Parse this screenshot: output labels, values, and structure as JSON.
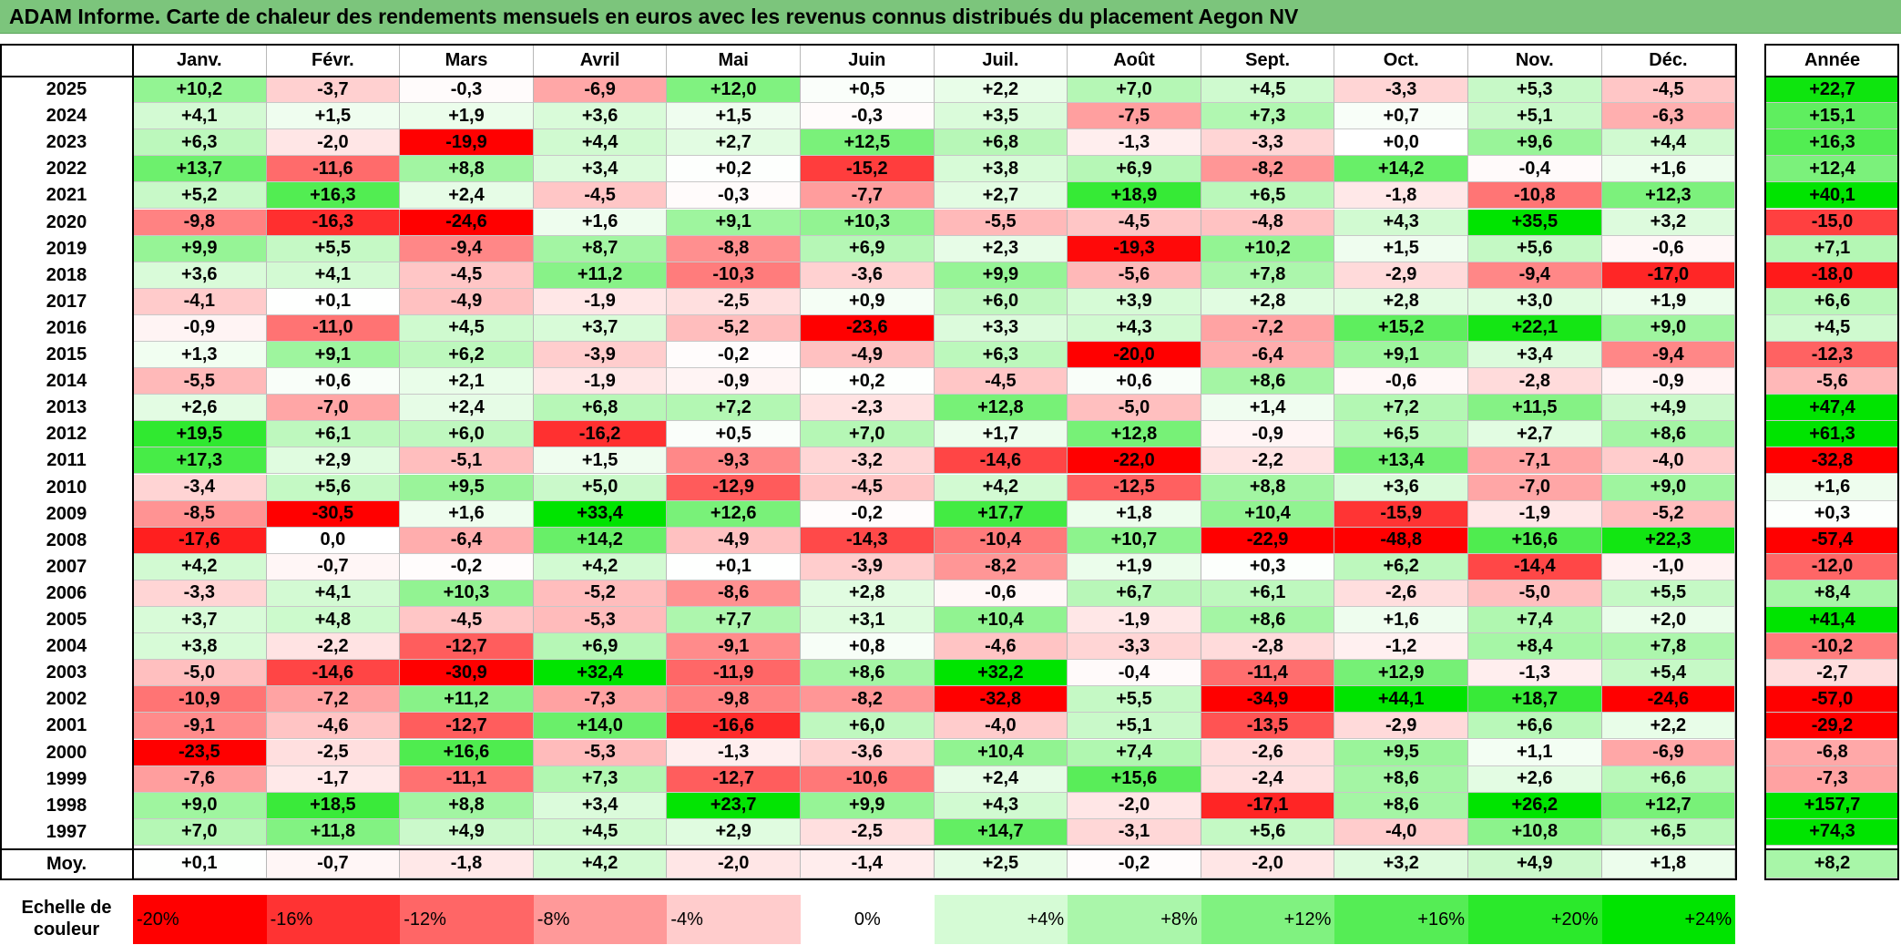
{
  "title": "ADAM Informe. Carte de chaleur des rendements mensuels en euros avec les revenus connus distribués du placement Aegon NV",
  "colors": {
    "title_bg": "#7cc57c",
    "neg_max": "#ff0000",
    "pos_max": "#00e400",
    "neutral": "#ffffff"
  },
  "chart_data": {
    "type": "heatmap",
    "months": [
      "Janv.",
      "Févr.",
      "Mars",
      "Avril",
      "Mai",
      "Juin",
      "Juil.",
      "Août",
      "Sept.",
      "Oct.",
      "Nov.",
      "Déc."
    ],
    "year_header": "Année",
    "rows": [
      {
        "year": "2025",
        "values": [
          "+10,2",
          "-3,7",
          "-0,3",
          "-6,9",
          "+12,0",
          "+0,5",
          "+2,2",
          "+7,0",
          "+4,5",
          "-3,3",
          "+5,3",
          "-4,5"
        ],
        "annual": "+22,7"
      },
      {
        "year": "2024",
        "values": [
          "+4,1",
          "+1,5",
          "+1,9",
          "+3,6",
          "+1,5",
          "-0,3",
          "+3,5",
          "-7,5",
          "+7,3",
          "+0,7",
          "+5,1",
          "-6,3"
        ],
        "annual": "+15,1"
      },
      {
        "year": "2023",
        "values": [
          "+6,3",
          "-2,0",
          "-19,9",
          "+4,4",
          "+2,7",
          "+12,5",
          "+6,8",
          "-1,3",
          "-3,3",
          "+0,0",
          "+9,6",
          "+4,4"
        ],
        "annual": "+16,3"
      },
      {
        "year": "2022",
        "values": [
          "+13,7",
          "-11,6",
          "+8,8",
          "+3,4",
          "+0,2",
          "-15,2",
          "+3,8",
          "+6,9",
          "-8,2",
          "+14,2",
          "-0,4",
          "+1,6"
        ],
        "annual": "+12,4"
      },
      {
        "year": "2021",
        "values": [
          "+5,2",
          "+16,3",
          "+2,4",
          "-4,5",
          "-0,3",
          "-7,7",
          "+2,7",
          "+18,9",
          "+6,5",
          "-1,8",
          "-10,8",
          "+12,3"
        ],
        "annual": "+40,1"
      },
      {
        "year": "2020",
        "values": [
          "-9,8",
          "-16,3",
          "-24,6",
          "+1,6",
          "+9,1",
          "+10,3",
          "-5,5",
          "-4,5",
          "-4,8",
          "+4,3",
          "+35,5",
          "+3,2"
        ],
        "annual": "-15,0"
      },
      {
        "year": "2019",
        "values": [
          "+9,9",
          "+5,5",
          "-9,4",
          "+8,7",
          "-8,8",
          "+6,9",
          "+2,3",
          "-19,3",
          "+10,2",
          "+1,5",
          "+5,6",
          "-0,6"
        ],
        "annual": "+7,1"
      },
      {
        "year": "2018",
        "values": [
          "+3,6",
          "+4,1",
          "-4,5",
          "+11,2",
          "-10,3",
          "-3,6",
          "+9,9",
          "-5,6",
          "+7,8",
          "-2,9",
          "-9,4",
          "-17,0"
        ],
        "annual": "-18,0"
      },
      {
        "year": "2017",
        "values": [
          "-4,1",
          "+0,1",
          "-4,9",
          "-1,9",
          "-2,5",
          "+0,9",
          "+6,0",
          "+3,9",
          "+2,8",
          "+2,8",
          "+3,0",
          "+1,9"
        ],
        "annual": "+6,6"
      },
      {
        "year": "2016",
        "values": [
          "-0,9",
          "-11,0",
          "+4,5",
          "+3,7",
          "-5,2",
          "-23,6",
          "+3,3",
          "+4,3",
          "-7,2",
          "+15,2",
          "+22,1",
          "+9,0"
        ],
        "annual": "+4,5"
      },
      {
        "year": "2015",
        "values": [
          "+1,3",
          "+9,1",
          "+6,2",
          "-3,9",
          "-0,2",
          "-4,9",
          "+6,3",
          "-20,0",
          "-6,4",
          "+9,1",
          "+3,4",
          "-9,4"
        ],
        "annual": "-12,3"
      },
      {
        "year": "2014",
        "values": [
          "-5,5",
          "+0,6",
          "+2,1",
          "-1,9",
          "-0,9",
          "+0,2",
          "-4,5",
          "+0,6",
          "+8,6",
          "-0,6",
          "-2,8",
          "-0,9"
        ],
        "annual": "-5,6"
      },
      {
        "year": "2013",
        "values": [
          "+2,6",
          "-7,0",
          "+2,4",
          "+6,8",
          "+7,2",
          "-2,3",
          "+12,8",
          "-5,0",
          "+1,4",
          "+7,2",
          "+11,5",
          "+4,9"
        ],
        "annual": "+47,4"
      },
      {
        "year": "2012",
        "values": [
          "+19,5",
          "+6,1",
          "+6,0",
          "-16,2",
          "+0,5",
          "+7,0",
          "+1,7",
          "+12,8",
          "-0,9",
          "+6,5",
          "+2,7",
          "+8,6"
        ],
        "annual": "+61,3"
      },
      {
        "year": "2011",
        "values": [
          "+17,3",
          "+2,9",
          "-5,1",
          "+1,5",
          "-9,3",
          "-3,2",
          "-14,6",
          "-22,0",
          "-2,2",
          "+13,4",
          "-7,1",
          "-4,0"
        ],
        "annual": "-32,8"
      },
      {
        "year": "2010",
        "values": [
          "-3,4",
          "+5,6",
          "+9,5",
          "+5,0",
          "-12,9",
          "-4,5",
          "+4,2",
          "-12,5",
          "+8,8",
          "+3,6",
          "-7,0",
          "+9,0"
        ],
        "annual": "+1,6"
      },
      {
        "year": "2009",
        "values": [
          "-8,5",
          "-30,5",
          "+1,6",
          "+33,4",
          "+12,6",
          "-0,2",
          "+17,7",
          "+1,8",
          "+10,4",
          "-15,9",
          "-1,9",
          "-5,2"
        ],
        "annual": "+0,3"
      },
      {
        "year": "2008",
        "values": [
          "-17,6",
          "0,0",
          "-6,4",
          "+14,2",
          "-4,9",
          "-14,3",
          "-10,4",
          "+10,7",
          "-22,9",
          "-48,8",
          "+16,6",
          "+22,3"
        ],
        "annual": "-57,4"
      },
      {
        "year": "2007",
        "values": [
          "+4,2",
          "-0,7",
          "-0,2",
          "+4,2",
          "+0,1",
          "-3,9",
          "-8,2",
          "+1,9",
          "+0,3",
          "+6,2",
          "-14,4",
          "-1,0"
        ],
        "annual": "-12,0"
      },
      {
        "year": "2006",
        "values": [
          "-3,3",
          "+4,1",
          "+10,3",
          "-5,2",
          "-8,6",
          "+2,8",
          "-0,6",
          "+6,7",
          "+6,1",
          "-2,6",
          "-5,0",
          "+5,5"
        ],
        "annual": "+8,4"
      },
      {
        "year": "2005",
        "values": [
          "+3,7",
          "+4,8",
          "-4,5",
          "-5,3",
          "+7,7",
          "+3,1",
          "+10,4",
          "-1,9",
          "+8,6",
          "+1,6",
          "+7,4",
          "+2,0"
        ],
        "annual": "+41,4"
      },
      {
        "year": "2004",
        "values": [
          "+3,8",
          "-2,2",
          "-12,7",
          "+6,9",
          "-9,1",
          "+0,8",
          "-4,6",
          "-3,3",
          "-2,8",
          "-1,2",
          "+8,4",
          "+7,8"
        ],
        "annual": "-10,2"
      },
      {
        "year": "2003",
        "values": [
          "-5,0",
          "-14,6",
          "-30,9",
          "+32,4",
          "-11,9",
          "+8,6",
          "+32,2",
          "-0,4",
          "-11,4",
          "+12,9",
          "-1,3",
          "+5,4"
        ],
        "annual": "-2,7"
      },
      {
        "year": "2002",
        "values": [
          "-10,9",
          "-7,2",
          "+11,2",
          "-7,3",
          "-9,8",
          "-8,2",
          "-32,8",
          "+5,5",
          "-34,9",
          "+44,1",
          "+18,7",
          "-24,6"
        ],
        "annual": "-57,0"
      },
      {
        "year": "2001",
        "values": [
          "-9,1",
          "-4,6",
          "-12,7",
          "+14,0",
          "-16,6",
          "+6,0",
          "-4,0",
          "+5,1",
          "-13,5",
          "-2,9",
          "+6,6",
          "+2,2"
        ],
        "annual": "-29,2"
      },
      {
        "year": "2000",
        "values": [
          "-23,5",
          "-2,5",
          "+16,6",
          "-5,3",
          "-1,3",
          "-3,6",
          "+10,4",
          "+7,4",
          "-2,6",
          "+9,5",
          "+1,1",
          "-6,9"
        ],
        "annual": "-6,8"
      },
      {
        "year": "1999",
        "values": [
          "-7,6",
          "-1,7",
          "-11,1",
          "+7,3",
          "-12,7",
          "-10,6",
          "+2,4",
          "+15,6",
          "-2,4",
          "+8,6",
          "+2,6",
          "+6,6"
        ],
        "annual": "-7,3"
      },
      {
        "year": "1998",
        "values": [
          "+9,0",
          "+18,5",
          "+8,8",
          "+3,4",
          "+23,7",
          "+9,9",
          "+4,3",
          "-2,0",
          "-17,1",
          "+8,6",
          "+26,2",
          "+12,7"
        ],
        "annual": "+157,7"
      },
      {
        "year": "1997",
        "values": [
          "+7,0",
          "+11,8",
          "+4,9",
          "+4,5",
          "+2,9",
          "-2,5",
          "+14,7",
          "-3,1",
          "+5,6",
          "-4,0",
          "+10,8",
          "+6,5"
        ],
        "annual": "+74,3"
      }
    ],
    "average": {
      "label": "Moy.",
      "values": [
        "+0,1",
        "-0,7",
        "-1,8",
        "+4,2",
        "-2,0",
        "-1,4",
        "+2,5",
        "-0,2",
        "-2,0",
        "+3,2",
        "+4,9",
        "+1,8"
      ],
      "annual": "+8,2"
    },
    "scale": {
      "label": "Echelle de couleur",
      "steps": [
        {
          "text": "-20%",
          "value": -20
        },
        {
          "text": "-16%",
          "value": -16
        },
        {
          "text": "-12%",
          "value": -12
        },
        {
          "text": "-8%",
          "value": -8
        },
        {
          "text": "-4%",
          "value": -4
        },
        {
          "text": "0%",
          "value": 0
        },
        {
          "text": "+4%",
          "value": 4
        },
        {
          "text": "+8%",
          "value": 8
        },
        {
          "text": "+12%",
          "value": 12
        },
        {
          "text": "+16%",
          "value": 16
        },
        {
          "text": "+20%",
          "value": 20
        },
        {
          "text": "+24%",
          "value": 24
        }
      ]
    }
  }
}
